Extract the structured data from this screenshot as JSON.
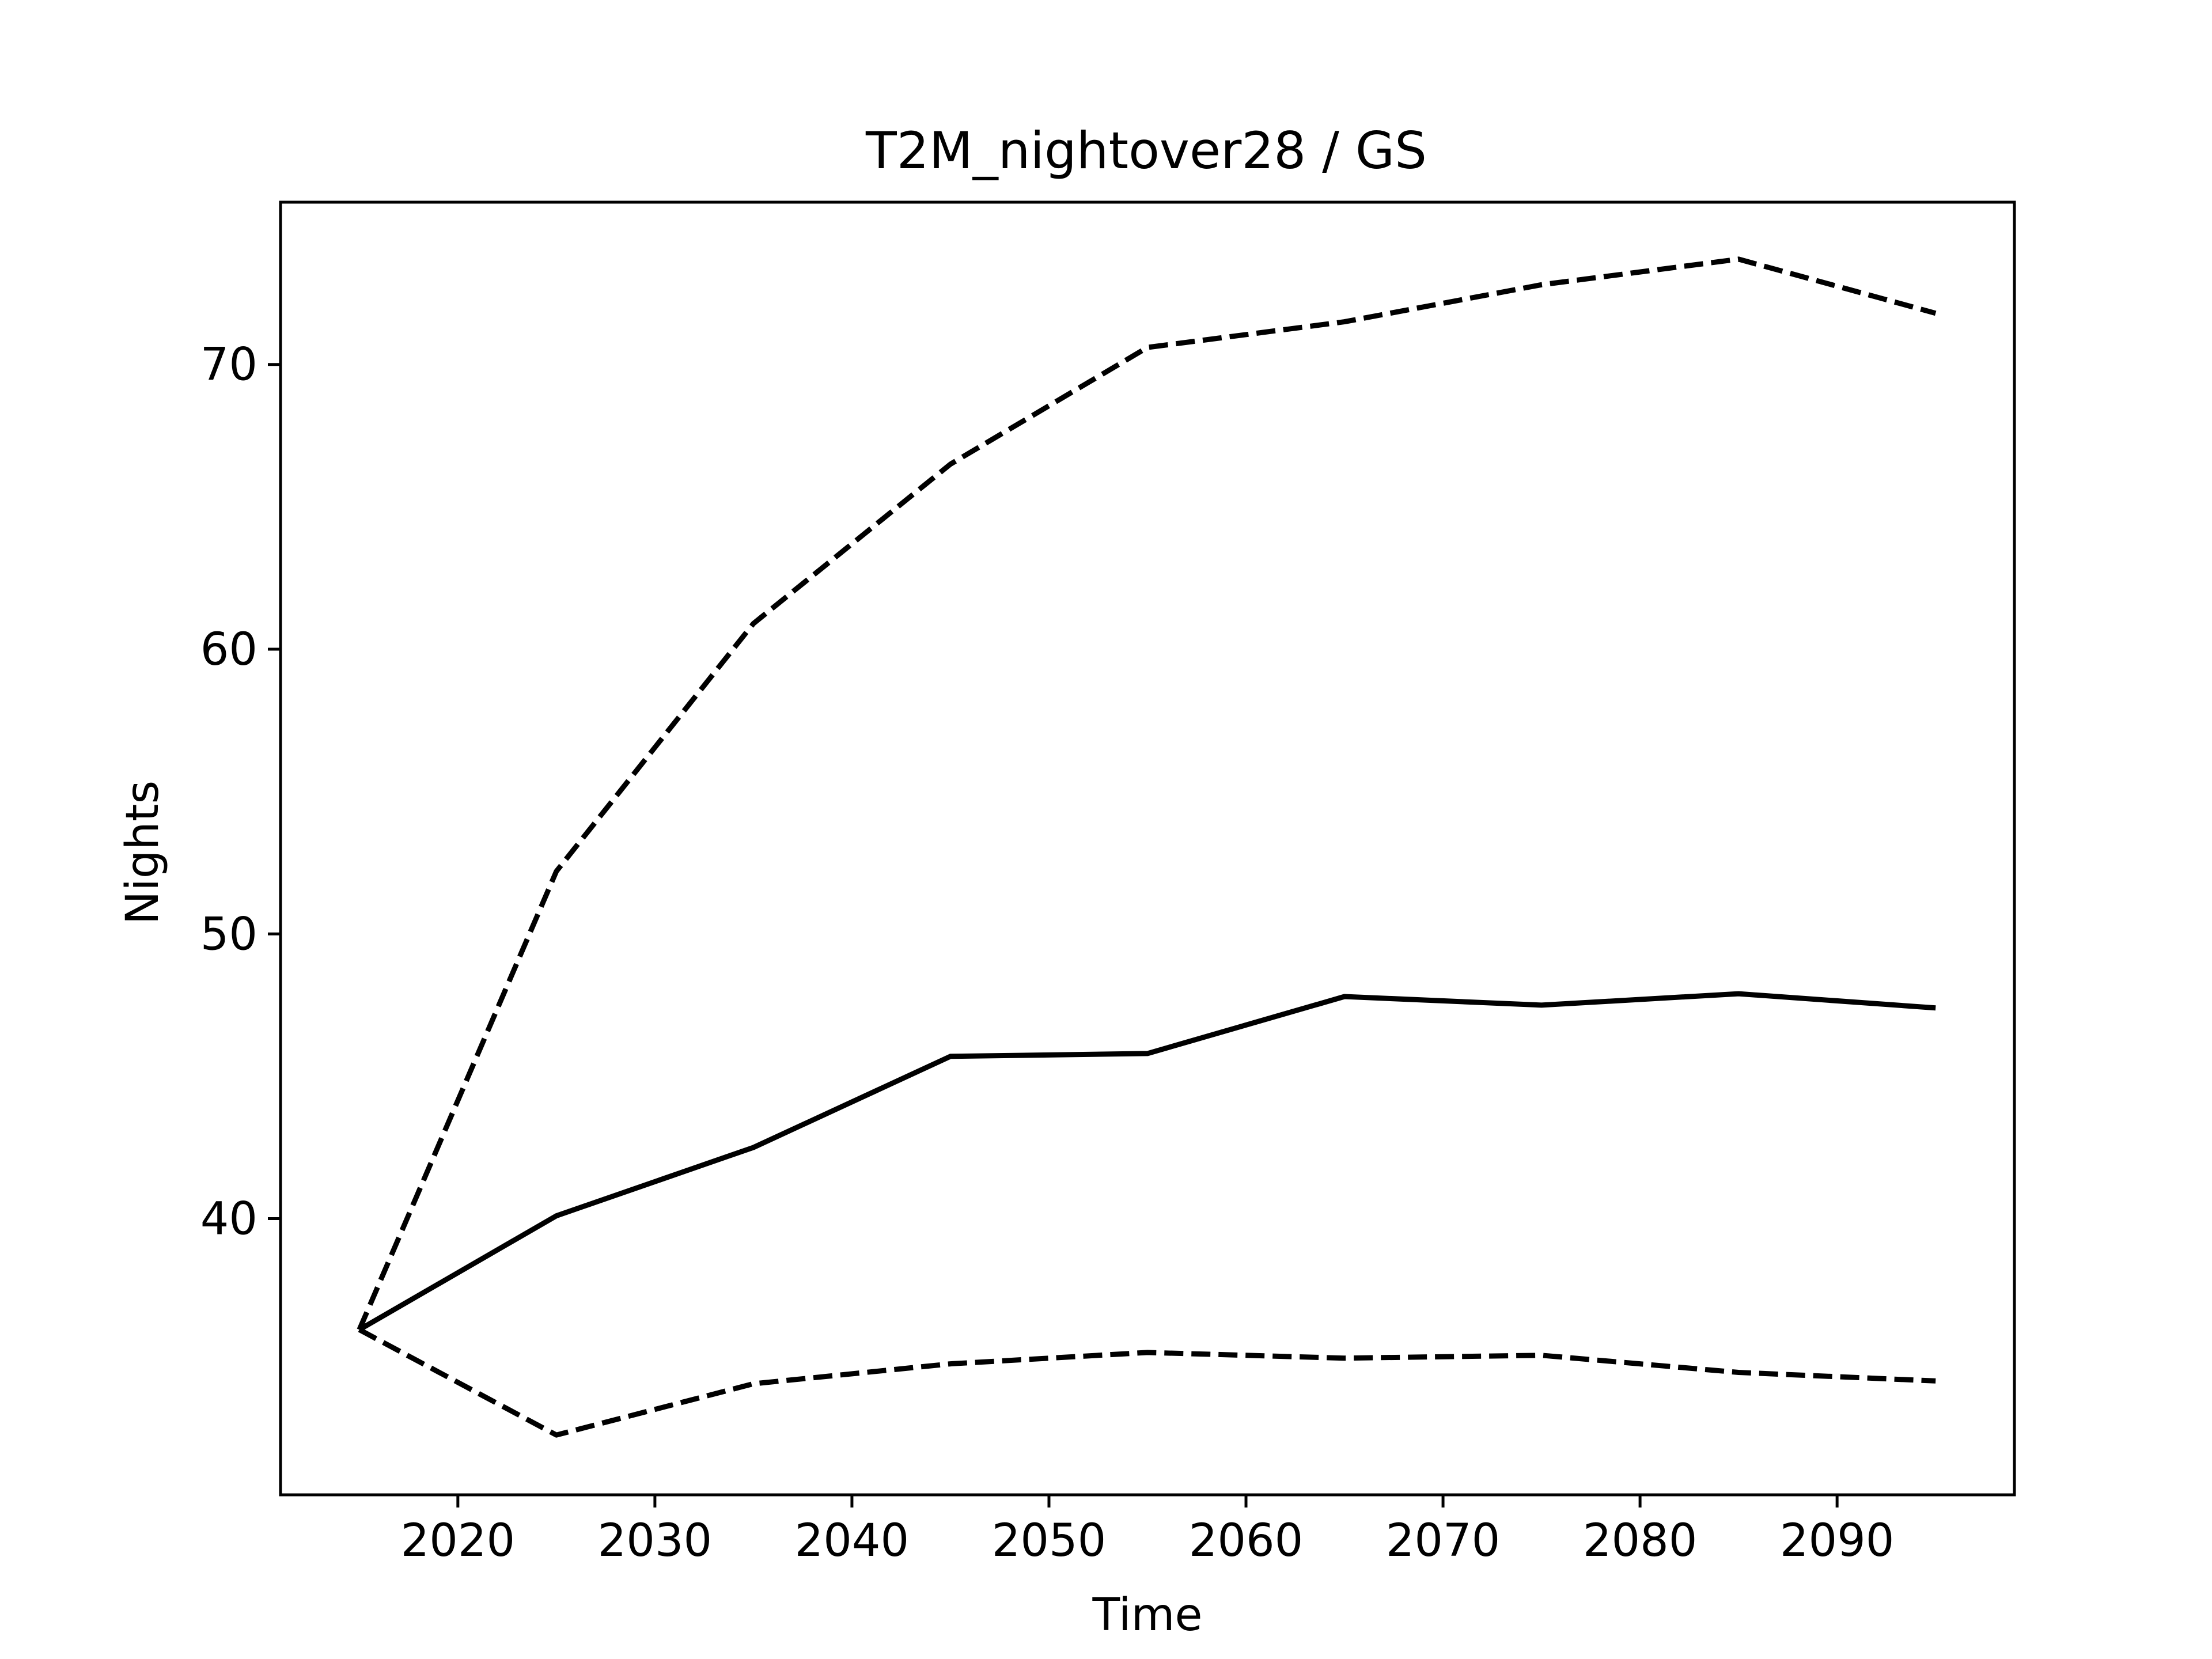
{
  "chart_data": {
    "type": "line",
    "title": "T2M_nightover28 / GS",
    "xlabel": "Time",
    "ylabel": "Nights",
    "xlim": [
      2011,
      2099
    ],
    "ylim": [
      30.3,
      75.7
    ],
    "x_ticks": [
      2020,
      2030,
      2040,
      2050,
      2060,
      2070,
      2080,
      2090
    ],
    "y_ticks": [
      40,
      50,
      60,
      70
    ],
    "grid": false,
    "legend": "none",
    "line_color": "#000000",
    "x": [
      2015,
      2025,
      2035,
      2045,
      2055,
      2065,
      2075,
      2085,
      2095
    ],
    "series": [
      {
        "style": "solid",
        "values": [
          36.1,
          40.1,
          42.5,
          45.7,
          45.8,
          47.8,
          47.5,
          47.9,
          47.4
        ]
      },
      {
        "style": "dashed",
        "values": [
          36.1,
          52.2,
          60.9,
          66.5,
          70.6,
          71.5,
          72.8,
          73.7,
          71.8
        ]
      },
      {
        "style": "dashed",
        "values": [
          36.1,
          32.4,
          34.2,
          34.9,
          35.3,
          35.1,
          35.2,
          34.6,
          34.3
        ]
      }
    ]
  }
}
